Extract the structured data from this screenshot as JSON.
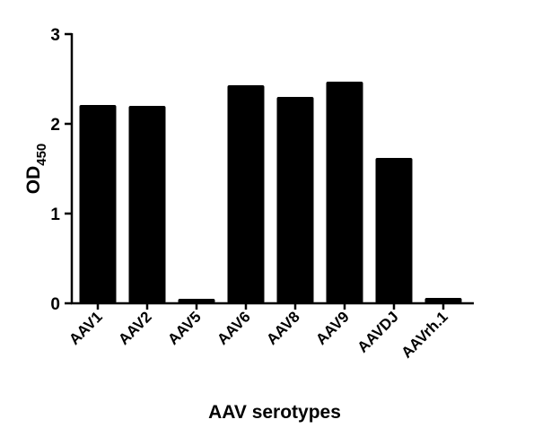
{
  "chart_data": {
    "type": "bar",
    "categories": [
      "AAV1",
      "AAV2",
      "AAV5",
      "AAV6",
      "AAV8",
      "AAV9",
      "AAVDJ",
      "AAVrh.1"
    ],
    "values": [
      2.21,
      2.2,
      0.05,
      2.43,
      2.3,
      2.47,
      1.62,
      0.06
    ],
    "xlabel": "AAV serotypes",
    "ylabel_main": "OD",
    "ylabel_sub": "450",
    "ylim": [
      0,
      3
    ],
    "yticks": [
      0,
      1,
      2,
      3
    ],
    "ytick_labels": [
      "0",
      "1",
      "2",
      "3"
    ],
    "bar_color": "#000000",
    "grid": false
  }
}
